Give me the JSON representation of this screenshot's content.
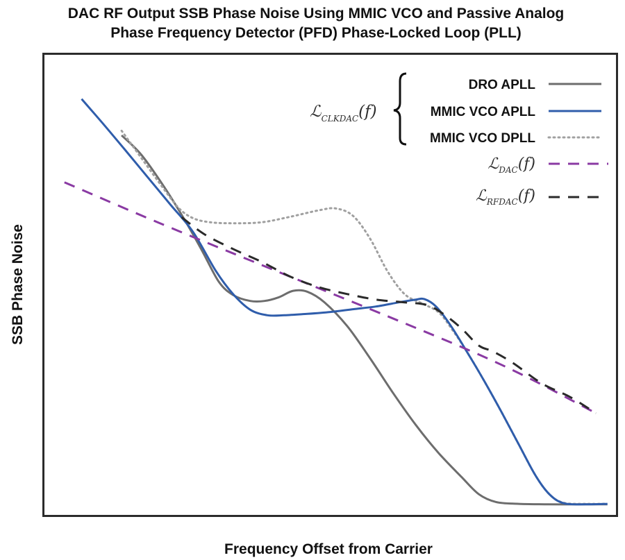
{
  "chart_data": {
    "type": "line",
    "title": "DAC RF Output SSB Phase Noise Using MMIC VCO and Passive Analog Phase Frequency Detector (PFD) Phase-Locked Loop (PLL)",
    "title_lines": [
      "DAC RF Output SSB Phase Noise Using MMIC VCO and Passive Analog",
      "Phase Frequency Detector (PFD) Phase-Locked Loop (PLL)"
    ],
    "xlabel": "Frequency Offset from Carrier",
    "ylabel": "SSB Phase Noise",
    "xlim": [
      0,
      100
    ],
    "ylim": [
      0,
      100
    ],
    "ticks": "none",
    "grid": false,
    "legend_position": "top-right",
    "legend_group_label": {
      "base": "ℒ",
      "sub": "CLKDAC",
      "arg": "(f)"
    },
    "series": [
      {
        "key": "dro_apll",
        "name": "DRO APLL",
        "color": "#6d6d6d",
        "dash": "solid",
        "width": 3,
        "points": [
          [
            13.5,
            82.5
          ],
          [
            17,
            78.2
          ],
          [
            21,
            71.2
          ],
          [
            24.5,
            64.2
          ],
          [
            27.5,
            57.6
          ],
          [
            30.5,
            50.7
          ],
          [
            33,
            47.8
          ],
          [
            36,
            46.5
          ],
          [
            38.5,
            46.5
          ],
          [
            41,
            47.3
          ],
          [
            43.5,
            48.7
          ],
          [
            46,
            48.5
          ],
          [
            49,
            46.2
          ],
          [
            53,
            41.0
          ],
          [
            57,
            34.0
          ],
          [
            61,
            26.5
          ],
          [
            65,
            19.5
          ],
          [
            69,
            13.4
          ],
          [
            73,
            8.2
          ],
          [
            76,
            4.5
          ],
          [
            79,
            2.8
          ],
          [
            83,
            2.4
          ],
          [
            88,
            2.3
          ],
          [
            94,
            2.3
          ],
          [
            98.5,
            2.3
          ]
        ]
      },
      {
        "key": "mmic_vco_apll",
        "name": "MMIC VCO APLL",
        "color": "#2f5dab",
        "dash": "solid",
        "width": 3,
        "points": [
          [
            6.5,
            90.4
          ],
          [
            10,
            85.4
          ],
          [
            14,
            79.5
          ],
          [
            18,
            73.5
          ],
          [
            22,
            67.5
          ],
          [
            26,
            61.5
          ],
          [
            30,
            53.0
          ],
          [
            33,
            48.0
          ],
          [
            36,
            44.6
          ],
          [
            39,
            43.4
          ],
          [
            42,
            43.4
          ],
          [
            46,
            43.7
          ],
          [
            50,
            44.1
          ],
          [
            54,
            44.7
          ],
          [
            58,
            45.3
          ],
          [
            62,
            46.2
          ],
          [
            65,
            46.8
          ],
          [
            66.5,
            46.9
          ],
          [
            68.5,
            45.3
          ],
          [
            71,
            41.3
          ],
          [
            74,
            35.3
          ],
          [
            77,
            29.0
          ],
          [
            80,
            22.3
          ],
          [
            83,
            15.3
          ],
          [
            86,
            8.4
          ],
          [
            88.5,
            4.3
          ],
          [
            91,
            2.5
          ],
          [
            95,
            2.3
          ],
          [
            98.5,
            2.4
          ]
        ]
      },
      {
        "key": "mmic_vco_dpll",
        "name": "MMIC VCO DPLL",
        "color": "#a0a0a0",
        "dash": "dotted",
        "width": 3,
        "points": [
          [
            13.5,
            83.5
          ],
          [
            17,
            77.5
          ],
          [
            20.5,
            71.5
          ],
          [
            23.5,
            66.7
          ],
          [
            26,
            64.5
          ],
          [
            29,
            63.6
          ],
          [
            33,
            63.4
          ],
          [
            38,
            63.6
          ],
          [
            43,
            64.8
          ],
          [
            48,
            66.2
          ],
          [
            51,
            66.6
          ],
          [
            54,
            65.0
          ],
          [
            57,
            60.0
          ],
          [
            60,
            53.0
          ],
          [
            63,
            48.0
          ],
          [
            66,
            46.0
          ],
          [
            69,
            44.0
          ],
          [
            71.5,
            40.0
          ],
          [
            74,
            35.3
          ],
          [
            77,
            29.0
          ],
          [
            80,
            22.3
          ],
          [
            83,
            15.3
          ],
          [
            86,
            8.4
          ],
          [
            88.5,
            4.3
          ],
          [
            91,
            2.6
          ],
          [
            95,
            2.4
          ],
          [
            98.5,
            2.4
          ]
        ]
      },
      {
        "key": "dac",
        "name": "",
        "label_math": {
          "base": "ℒ",
          "sub": "DAC",
          "arg": "(f)"
        },
        "color": "#8a3aa3",
        "dash": "dashed",
        "width": 3,
        "points": [
          [
            3.5,
            72.3
          ],
          [
            20,
            63.5
          ],
          [
            40,
            53.3
          ],
          [
            60,
            43.2
          ],
          [
            75,
            35.4
          ],
          [
            85,
            29.6
          ],
          [
            96.5,
            22.1
          ]
        ]
      },
      {
        "key": "rfdac",
        "name": "",
        "label_math": {
          "base": "ℒ",
          "sub": "RFDAC",
          "arg": "(f)"
        },
        "color": "#2a2a2a",
        "dash": "dashed",
        "width": 3,
        "points": [
          [
            24,
            64.7
          ],
          [
            28,
            61.0
          ],
          [
            33,
            57.8
          ],
          [
            38,
            55.0
          ],
          [
            43,
            51.8
          ],
          [
            48,
            49.5
          ],
          [
            53,
            48.0
          ],
          [
            58,
            46.8
          ],
          [
            63,
            46.2
          ],
          [
            67,
            45.6
          ],
          [
            70,
            43.5
          ],
          [
            73,
            40.5
          ],
          [
            76,
            36.8
          ],
          [
            78.5,
            35.5
          ],
          [
            82,
            33.0
          ],
          [
            87,
            28.6
          ],
          [
            92,
            25.6
          ],
          [
            96.5,
            22.1
          ]
        ]
      }
    ]
  }
}
